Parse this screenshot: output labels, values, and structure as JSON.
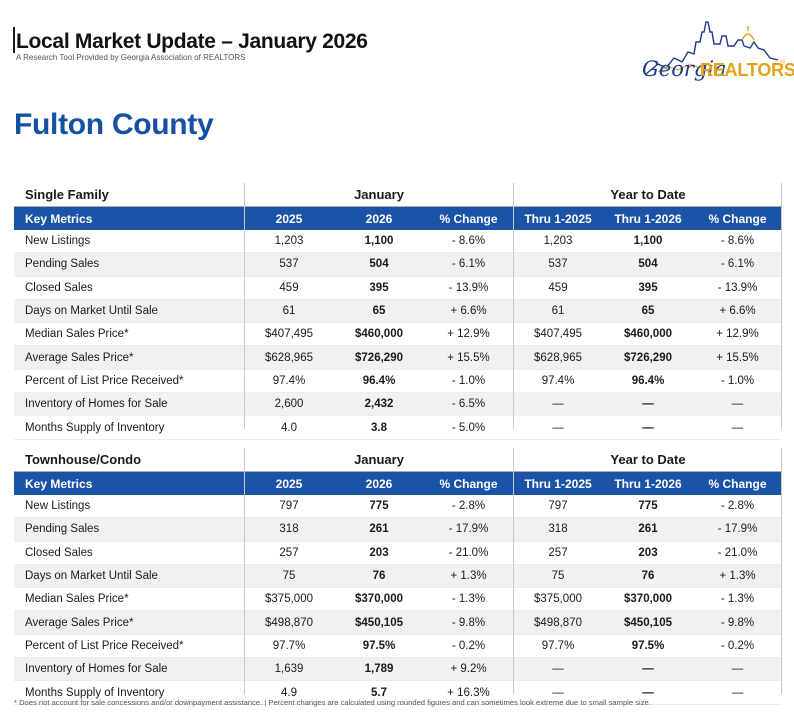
{
  "header": {
    "title": "Local Market Update – January 2026",
    "subtitle": "A Research Tool Provided by Georgia Association of REALTORS"
  },
  "logo": {
    "georgia": "Georgia",
    "realtors": "REALTORS",
    "reg": "®"
  },
  "county": "Fulton County",
  "period_labels": {
    "month": "January",
    "ytd": "Year to Date"
  },
  "columns": [
    "Key Metrics",
    "2025",
    "2026",
    "% Change",
    "Thru 1-2025",
    "Thru 1-2026",
    "% Change"
  ],
  "sections": [
    {
      "name": "Single Family",
      "rows": [
        [
          "New Listings",
          "1,203",
          "1,100",
          "- 8.6%",
          "1,203",
          "1,100",
          "- 8.6%"
        ],
        [
          "Pending Sales",
          "537",
          "504",
          "- 6.1%",
          "537",
          "504",
          "- 6.1%"
        ],
        [
          "Closed Sales",
          "459",
          "395",
          "- 13.9%",
          "459",
          "395",
          "- 13.9%"
        ],
        [
          "Days on Market Until Sale",
          "61",
          "65",
          "+ 6.6%",
          "61",
          "65",
          "+ 6.6%"
        ],
        [
          "Median Sales Price*",
          "$407,495",
          "$460,000",
          "+ 12.9%",
          "$407,495",
          "$460,000",
          "+ 12.9%"
        ],
        [
          "Average Sales Price*",
          "$628,965",
          "$726,290",
          "+ 15.5%",
          "$628,965",
          "$726,290",
          "+ 15.5%"
        ],
        [
          "Percent of List Price Received*",
          "97.4%",
          "96.4%",
          "- 1.0%",
          "97.4%",
          "96.4%",
          "- 1.0%"
        ],
        [
          "Inventory of Homes for Sale",
          "2,600",
          "2,432",
          "- 6.5%",
          "—",
          "—",
          "—"
        ],
        [
          "Months Supply of Inventory",
          "4.0",
          "3.8",
          "- 5.0%",
          "—",
          "—",
          "—"
        ]
      ]
    },
    {
      "name": "Townhouse/Condo",
      "rows": [
        [
          "New Listings",
          "797",
          "775",
          "- 2.8%",
          "797",
          "775",
          "- 2.8%"
        ],
        [
          "Pending Sales",
          "318",
          "261",
          "- 17.9%",
          "318",
          "261",
          "- 17.9%"
        ],
        [
          "Closed Sales",
          "257",
          "203",
          "- 21.0%",
          "257",
          "203",
          "- 21.0%"
        ],
        [
          "Days on Market Until Sale",
          "75",
          "76",
          "+ 1.3%",
          "75",
          "76",
          "+ 1.3%"
        ],
        [
          "Median Sales Price*",
          "$375,000",
          "$370,000",
          "- 1.3%",
          "$375,000",
          "$370,000",
          "- 1.3%"
        ],
        [
          "Average Sales Price*",
          "$498,870",
          "$450,105",
          "- 9.8%",
          "$498,870",
          "$450,105",
          "- 9.8%"
        ],
        [
          "Percent of List Price Received*",
          "97.7%",
          "97.5%",
          "- 0.2%",
          "97.7%",
          "97.5%",
          "- 0.2%"
        ],
        [
          "Inventory of Homes for Sale",
          "1,639",
          "1,789",
          "+ 9.2%",
          "—",
          "—",
          "—"
        ],
        [
          "Months Supply of Inventory",
          "4.9",
          "5.7",
          "+ 16.3%",
          "—",
          "—",
          "—"
        ]
      ]
    }
  ],
  "footnote": "* Does not account for sale concessions and/or downpayment assistance. | Percent changes are calculated using rounded figures and can sometimes look extreme due to small sample size.",
  "colors": {
    "header_blue": "#1b54a6",
    "county_blue": "#1650a5",
    "logo_gold": "#e3a21a"
  }
}
